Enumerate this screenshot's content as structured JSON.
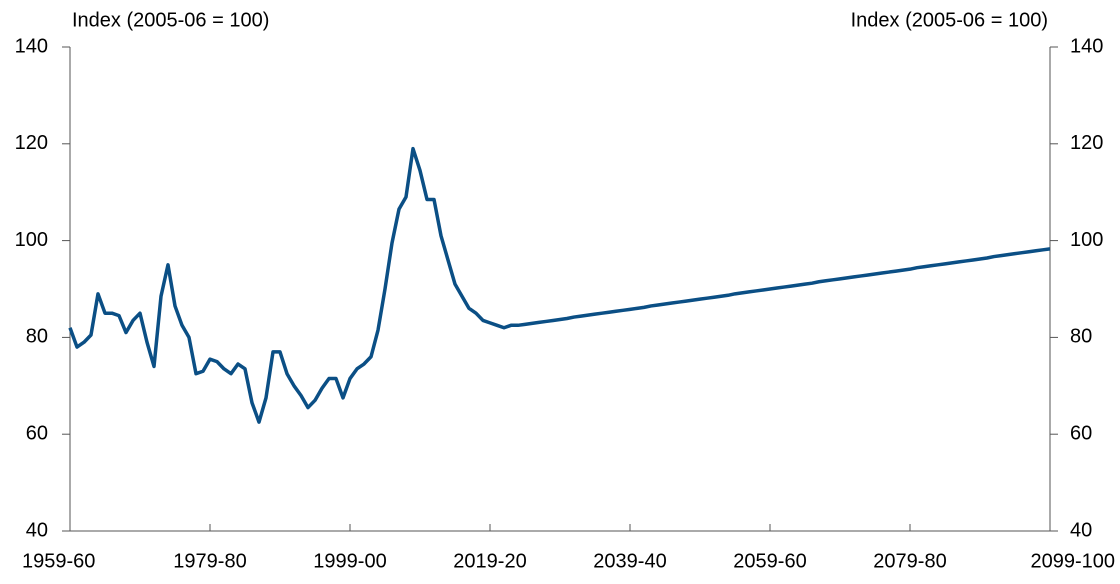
{
  "chart_data": {
    "type": "line",
    "y_label": "Index (2005-06 = 100)",
    "y2_label": "Index (2005-06 = 100)",
    "categories": [
      "1959-60",
      null,
      null,
      null,
      null,
      null,
      null,
      null,
      null,
      null,
      null,
      null,
      null,
      null,
      null,
      null,
      null,
      null,
      null,
      null,
      "1979-80",
      null,
      null,
      null,
      null,
      null,
      null,
      null,
      null,
      null,
      null,
      null,
      null,
      null,
      null,
      null,
      null,
      null,
      null,
      null,
      "1999-00",
      null,
      null,
      null,
      null,
      null,
      null,
      null,
      null,
      null,
      null,
      null,
      null,
      null,
      null,
      null,
      null,
      null,
      null,
      null,
      "2019-20",
      null,
      null,
      null,
      null,
      null,
      null,
      null,
      null,
      null,
      null,
      null,
      null,
      null,
      null,
      null,
      null,
      null,
      null,
      null,
      "2039-40",
      null,
      null,
      null,
      null,
      null,
      null,
      null,
      null,
      null,
      null,
      null,
      null,
      null,
      null,
      null,
      null,
      null,
      null,
      null,
      "2059-60",
      null,
      null,
      null,
      null,
      null,
      null,
      null,
      null,
      null,
      null,
      null,
      null,
      null,
      null,
      null,
      null,
      null,
      null,
      null,
      "2079-80",
      null,
      null,
      null,
      null,
      null,
      null,
      null,
      null,
      null,
      null,
      null,
      null,
      null,
      null,
      null,
      null,
      null,
      null,
      null,
      "2099-100"
    ],
    "values": [
      82,
      78,
      79,
      80.5,
      89,
      85,
      85,
      84.5,
      81,
      83.5,
      85,
      79,
      74,
      88.5,
      95,
      86.5,
      82.5,
      80,
      72.5,
      73,
      75.5,
      75,
      73.5,
      72.5,
      74.5,
      73.5,
      66.5,
      62.5,
      67.5,
      77,
      77,
      72.5,
      70,
      68,
      65.5,
      67,
      69.5,
      71.5,
      71.5,
      67.5,
      71.5,
      73.5,
      74.5,
      76,
      81.5,
      90,
      99.5,
      106.5,
      109,
      119,
      114.5,
      108.5,
      108.5,
      101,
      96,
      91,
      88.5,
      86,
      85,
      83.5,
      83,
      82.5,
      82,
      82.5,
      82.5,
      82.7,
      82.9,
      83.1,
      83.3,
      83.5,
      83.7,
      83.9,
      84.2,
      84.4,
      84.6,
      84.8,
      85.0,
      85.2,
      85.4,
      85.6,
      85.8,
      86.0,
      86.2,
      86.5,
      86.7,
      86.9,
      87.1,
      87.3,
      87.5,
      87.7,
      87.9,
      88.1,
      88.3,
      88.5,
      88.7,
      89.0,
      89.2,
      89.4,
      89.6,
      89.8,
      90.0,
      90.2,
      90.4,
      90.6,
      90.8,
      91.0,
      91.2,
      91.5,
      91.7,
      91.9,
      92.1,
      92.3,
      92.5,
      92.7,
      92.9,
      93.1,
      93.3,
      93.5,
      93.7,
      93.9,
      94.1,
      94.4,
      94.6,
      94.8,
      95.0,
      95.2,
      95.4,
      95.6,
      95.8,
      96.0,
      96.2,
      96.4,
      96.7,
      96.9,
      97.1,
      97.3,
      97.5,
      97.7,
      97.9,
      98.1,
      98.3
    ],
    "color": "#0b4f85",
    "ylim": [
      40,
      140
    ],
    "yticks": [
      40,
      60,
      80,
      100,
      120,
      140
    ],
    "y2lim": [
      40,
      140
    ],
    "y2ticks": [
      40,
      60,
      80,
      100,
      120,
      140
    ],
    "grid": false
  }
}
